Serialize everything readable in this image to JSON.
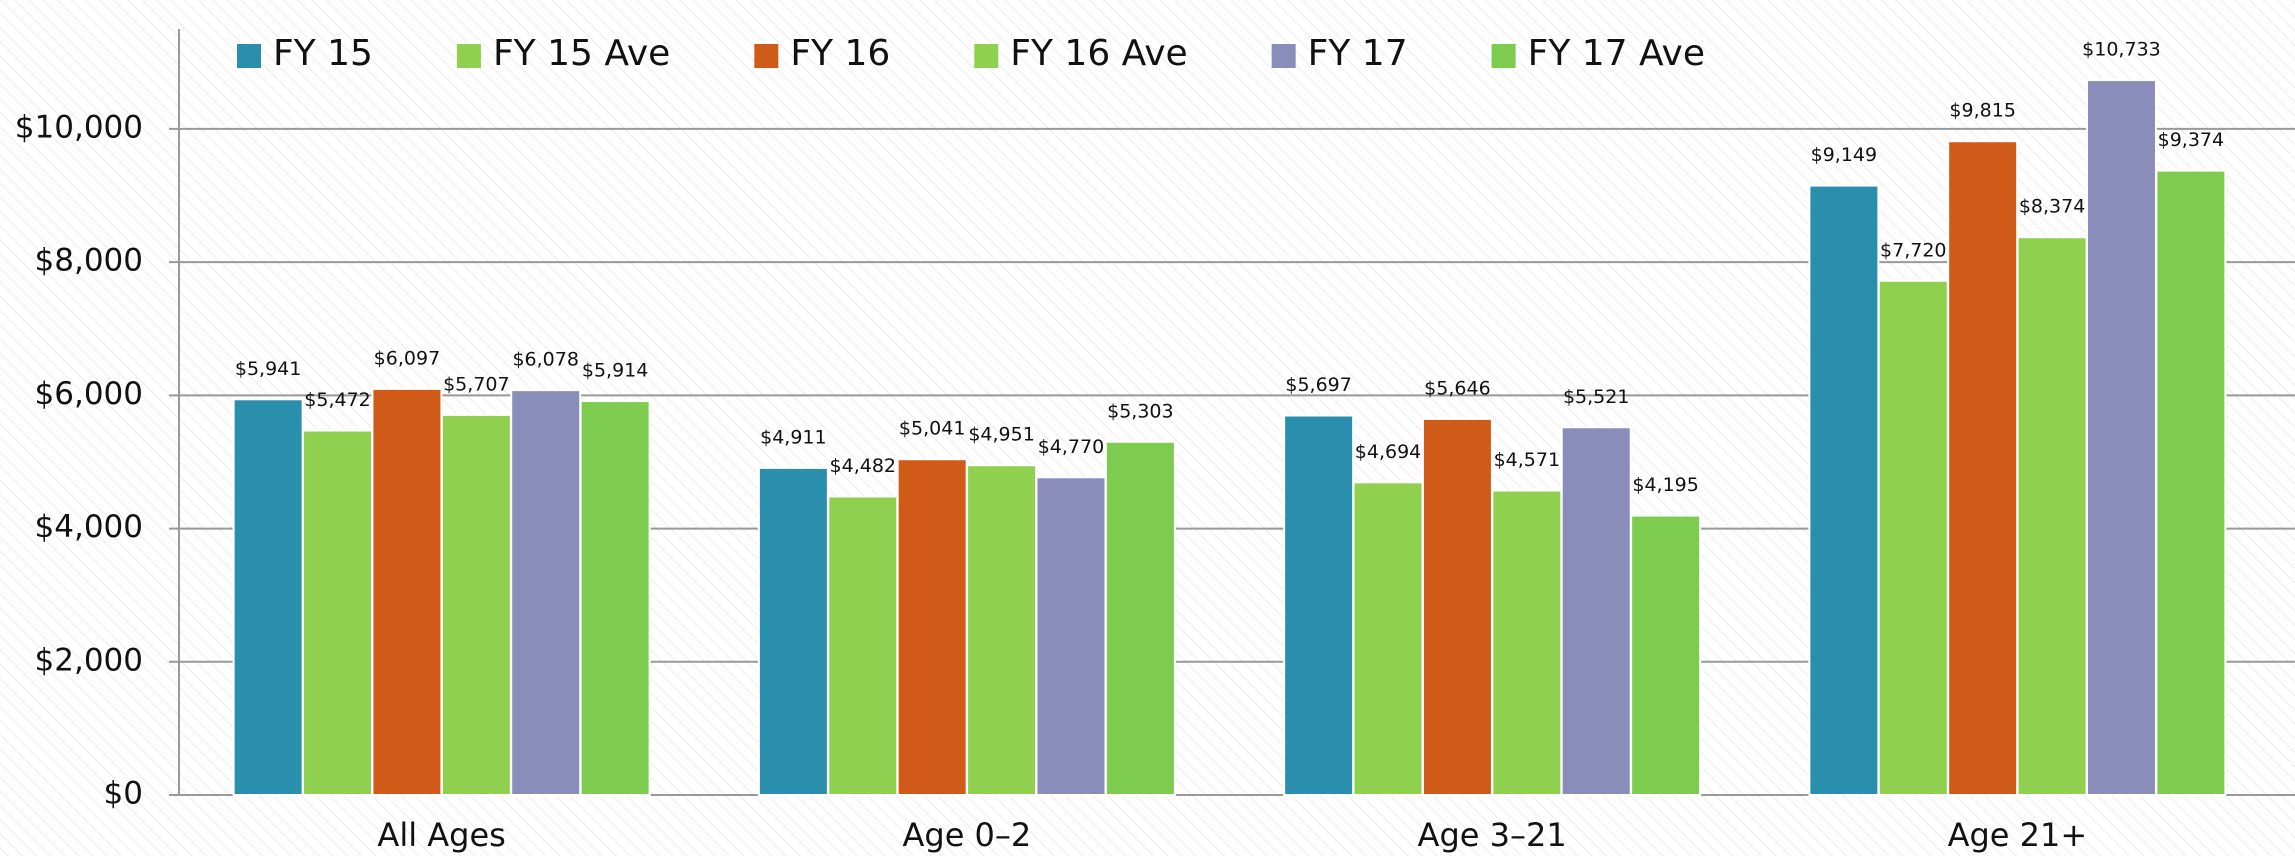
{
  "chart_data": {
    "type": "bar",
    "categories": [
      "All Ages",
      "Age 0–2",
      "Age 3–21",
      "Age 21+"
    ],
    "series": [
      {
        "name": "FY 15",
        "color": "#2a8fad",
        "values": [
          5941,
          4911,
          5697,
          9149
        ],
        "value_labels": [
          "$5,941",
          "$4,911",
          "$5,697",
          "$9,149"
        ]
      },
      {
        "name": "FY 15 Ave",
        "color": "#8fd14f",
        "values": [
          5472,
          4482,
          4694,
          7720
        ],
        "value_labels": [
          "$5,472",
          "$4,482",
          "$4,694",
          "$7,720"
        ]
      },
      {
        "name": "FY 16",
        "color": "#d05a18",
        "values": [
          6097,
          5041,
          5646,
          9815
        ],
        "value_labels": [
          "$6,097",
          "$5,041",
          "$5,646",
          "$9,815"
        ]
      },
      {
        "name": "FY 16 Ave",
        "color": "#8fd14f",
        "values": [
          5707,
          4951,
          4571,
          8374
        ],
        "value_labels": [
          "$5,707",
          "$4,951",
          "$4,571",
          "$8,374"
        ]
      },
      {
        "name": "FY 17",
        "color": "#8a8cba",
        "values": [
          6078,
          4770,
          5521,
          10733
        ],
        "value_labels": [
          "$6,078",
          "$4,770",
          "$5,521",
          "$10,733"
        ]
      },
      {
        "name": "FY 17 Ave",
        "color": "#7dcc50",
        "values": [
          5914,
          5303,
          4195,
          9374
        ],
        "value_labels": [
          "$5,914",
          "$5,303",
          "$4,195",
          "$9,374"
        ]
      }
    ],
    "ylim": [
      0,
      11500
    ],
    "yticks": [
      {
        "value": 0,
        "label": "$0"
      },
      {
        "value": 2000,
        "label": "$2,000"
      },
      {
        "value": 4000,
        "label": "$4,000"
      },
      {
        "value": 6000,
        "label": "$6,000"
      },
      {
        "value": 8000,
        "label": "$8,000"
      },
      {
        "value": 10000,
        "label": "$10,000"
      }
    ],
    "grid": true,
    "legend": "top"
  }
}
